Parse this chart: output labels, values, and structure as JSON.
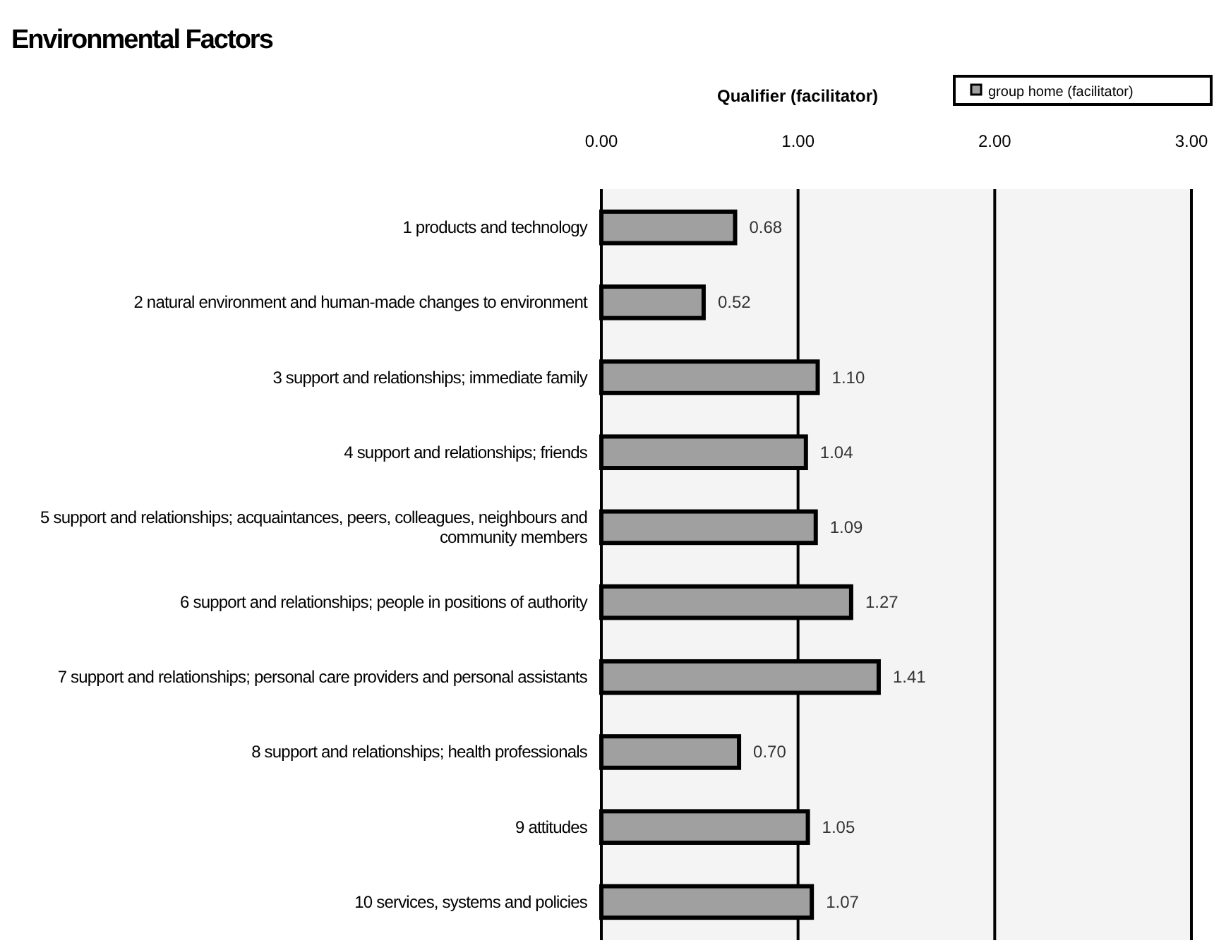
{
  "chart_data": {
    "type": "bar",
    "orientation": "horizontal",
    "title": "Environmental Factors",
    "xlabel": "Qualifier (facilitator)",
    "categories": [
      "1  products and technology",
      "2  natural environment and human-made changes to environment",
      "3  support and relationships; immediate family",
      "4  support and relationships; friends",
      "5  support and relationships; acquaintances, peers, colleagues, neighbours and community members",
      "6  support and relationships; people in positions of authority",
      "7  support and relationships; personal care providers and personal assistants",
      "8  support and relationships; health professionals",
      "9  attitudes",
      "10  services, systems and policies"
    ],
    "series": [
      {
        "name": "group home (facilitator)",
        "color": "#a0a0a0",
        "values": [
          0.68,
          0.52,
          1.1,
          1.04,
          1.09,
          1.27,
          1.41,
          0.7,
          1.05,
          1.07
        ],
        "value_labels": [
          "0.68",
          "0.52",
          "1.10",
          "1.04",
          "1.09",
          "1.27",
          "1.41",
          "0.70",
          "1.05",
          "1.07"
        ]
      }
    ],
    "xlim": [
      0,
      3
    ],
    "xticks": [
      {
        "value": 0,
        "label": "0.00"
      },
      {
        "value": 1,
        "label": "1.00"
      },
      {
        "value": 2,
        "label": "2.00"
      },
      {
        "value": 3,
        "label": "3.00"
      }
    ],
    "grid": "x",
    "legend": "top right"
  }
}
